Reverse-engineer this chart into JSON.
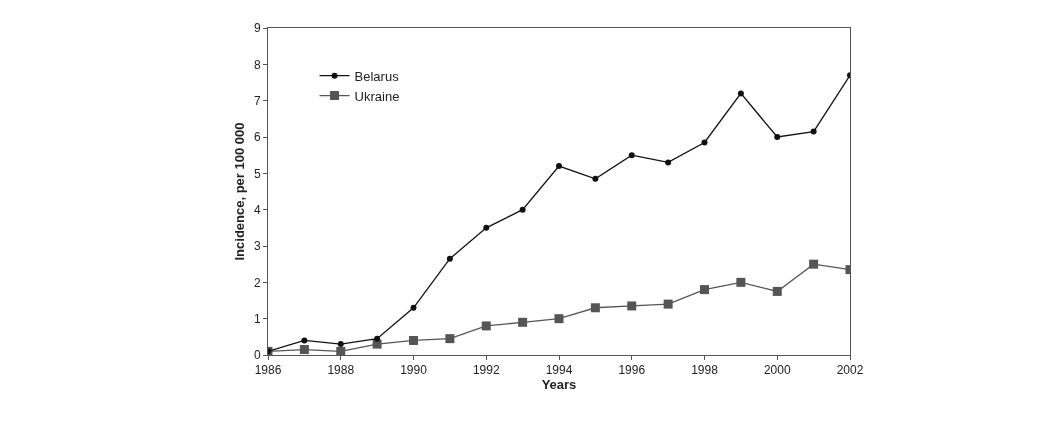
{
  "chart_data": {
    "type": "line",
    "xlabel": "Years",
    "ylabel": "Incidence, per 100 000",
    "x": [
      1986,
      1987,
      1988,
      1989,
      1990,
      1991,
      1992,
      1993,
      1994,
      1995,
      1996,
      1997,
      1998,
      1999,
      2000,
      2001,
      2002
    ],
    "series": [
      {
        "name": "Belarus",
        "color": "#111111",
        "marker": "circle",
        "values": [
          0.1,
          0.4,
          0.3,
          0.45,
          1.3,
          2.65,
          3.5,
          4.0,
          5.2,
          4.85,
          5.5,
          5.3,
          5.85,
          7.2,
          6.0,
          6.15,
          7.7
        ]
      },
      {
        "name": "Ukraine",
        "color": "#555555",
        "marker": "square",
        "values": [
          0.1,
          0.15,
          0.1,
          0.3,
          0.4,
          0.45,
          0.8,
          0.9,
          1.0,
          1.3,
          1.35,
          1.4,
          1.8,
          2.0,
          1.75,
          2.5,
          2.35
        ]
      }
    ],
    "xlim": [
      1986,
      2002
    ],
    "xticks": [
      1986,
      1988,
      1990,
      1992,
      1994,
      1996,
      1998,
      2000,
      2002
    ],
    "ylim": [
      0,
      9
    ],
    "yticks": [
      0,
      1,
      2,
      3,
      4,
      5,
      6,
      7,
      8,
      9
    ],
    "legend": "top left",
    "line_style": "solid"
  }
}
